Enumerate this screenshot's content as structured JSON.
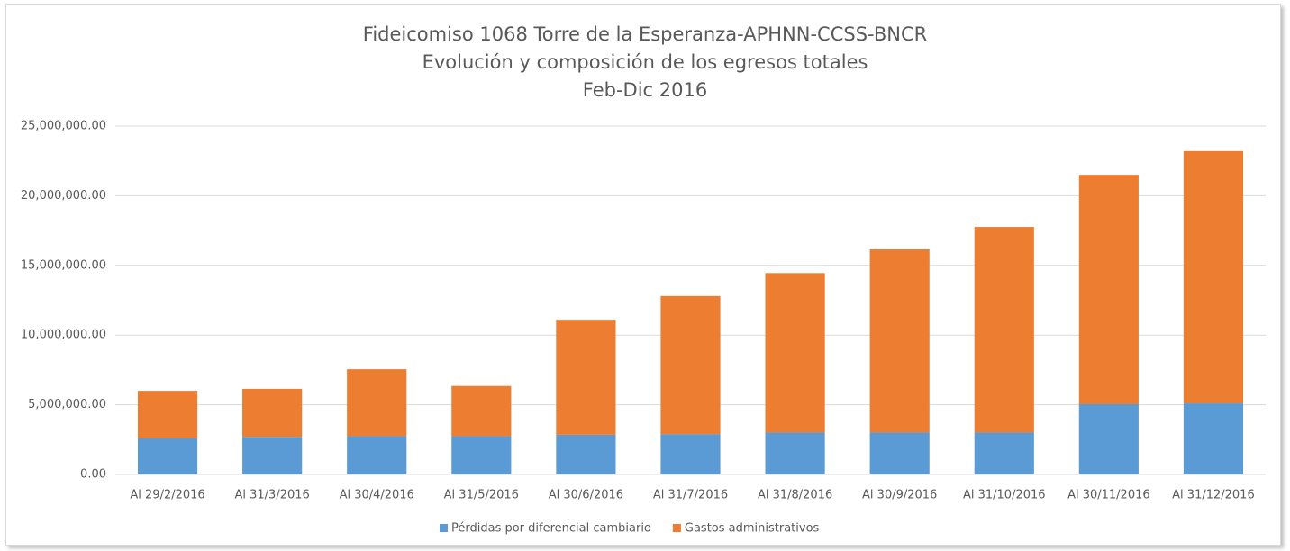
{
  "chart_data": {
    "type": "stacked_bar",
    "title": [
      "Fideicomiso 1068 Torre de la Esperanza-APHNN-CCSS-BNCR",
      "Evolución y composición de los egresos totales",
      "Feb-Dic 2016"
    ],
    "categories": [
      "Al 29/2/2016",
      "Al 31/3/2016",
      "Al 30/4/2016",
      "Al 31/5/2016",
      "Al 30/6/2016",
      "Al 31/7/2016",
      "Al 31/8/2016",
      "Al 30/9/2016",
      "Al 31/10/2016",
      "Al 30/11/2016",
      "Al 31/12/2016"
    ],
    "series": [
      {
        "name": "Pérdidas por diferencial cambiario",
        "color": "#5b9bd5",
        "values": [
          2600000,
          2700000,
          2750000,
          2750000,
          2850000,
          2900000,
          3000000,
          3000000,
          3000000,
          5040000,
          5100000
        ]
      },
      {
        "name": "Gastos administrativos",
        "color": "#ed7d31",
        "values": [
          3400000,
          3440000,
          4800000,
          3600000,
          8250000,
          9900000,
          11450000,
          13150000,
          14760000,
          16460000,
          18100000
        ]
      }
    ],
    "ylim": [
      0,
      25000000
    ],
    "yticks": [
      {
        "value": 0,
        "label": "0.00"
      },
      {
        "value": 5000000,
        "label": "5,000,000.00"
      },
      {
        "value": 10000000,
        "label": "10,000,000.00"
      },
      {
        "value": 15000000,
        "label": "15,000,000.00"
      },
      {
        "value": 20000000,
        "label": "20,000,000.00"
      },
      {
        "value": 25000000,
        "label": "25,000,000.00"
      }
    ],
    "grid": true,
    "legend": "bottom"
  }
}
